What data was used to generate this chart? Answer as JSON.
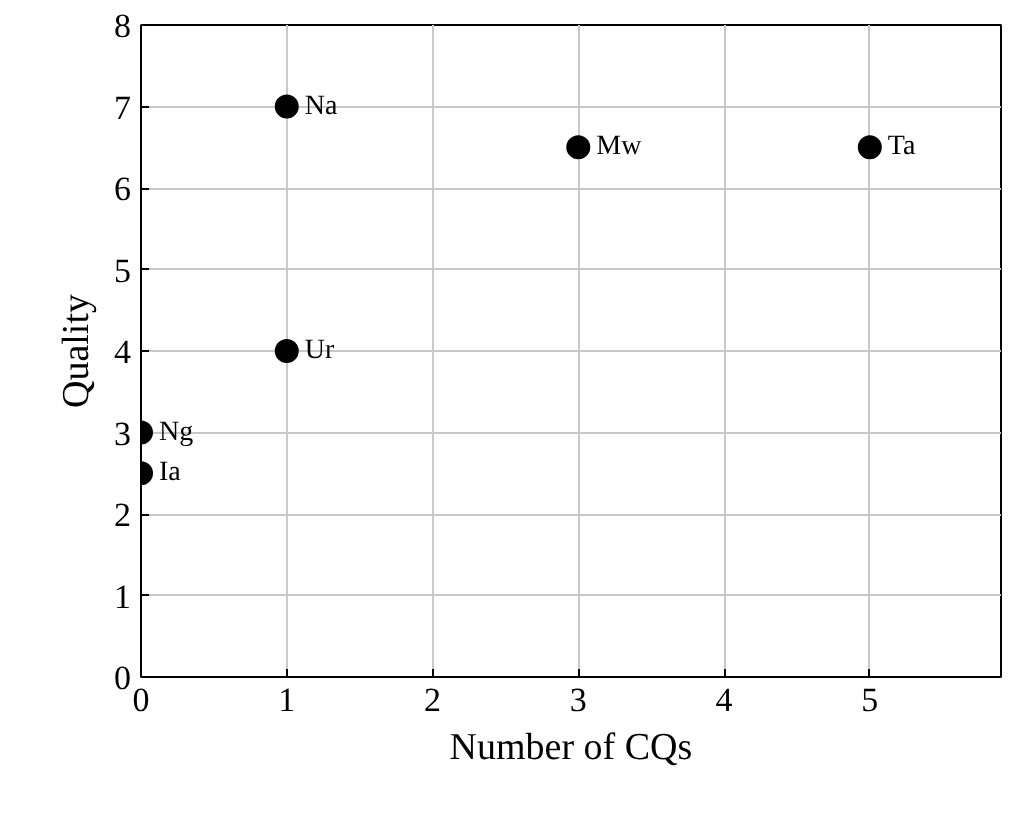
{
  "chart_data": {
    "type": "scatter",
    "xlabel": "Number of CQs",
    "ylabel": "Quality",
    "x": [
      0,
      0,
      1,
      1,
      3,
      5
    ],
    "series": [
      {
        "color": "#000000",
        "values": [
          2.5,
          3,
          4,
          7,
          6.5,
          6.5
        ]
      }
    ],
    "annotations": [
      {
        "text": "Ia",
        "x": 0,
        "y": 2.5
      },
      {
        "text": "Ng",
        "x": 0,
        "y": 3
      },
      {
        "text": "Ur",
        "x": 1,
        "y": 4
      },
      {
        "text": "Na",
        "x": 1,
        "y": 7
      },
      {
        "text": "Mw",
        "x": 3,
        "y": 6.5
      },
      {
        "text": "Ta",
        "x": 5,
        "y": 6.5
      }
    ],
    "xlim": [
      0,
      5.9
    ],
    "ylim": [
      0,
      8
    ],
    "xticks": [
      0,
      1,
      2,
      3,
      4,
      5
    ],
    "yticks": [
      0,
      1,
      2,
      3,
      4,
      5,
      6,
      7,
      8
    ],
    "grid": true,
    "marker": "circle"
  }
}
